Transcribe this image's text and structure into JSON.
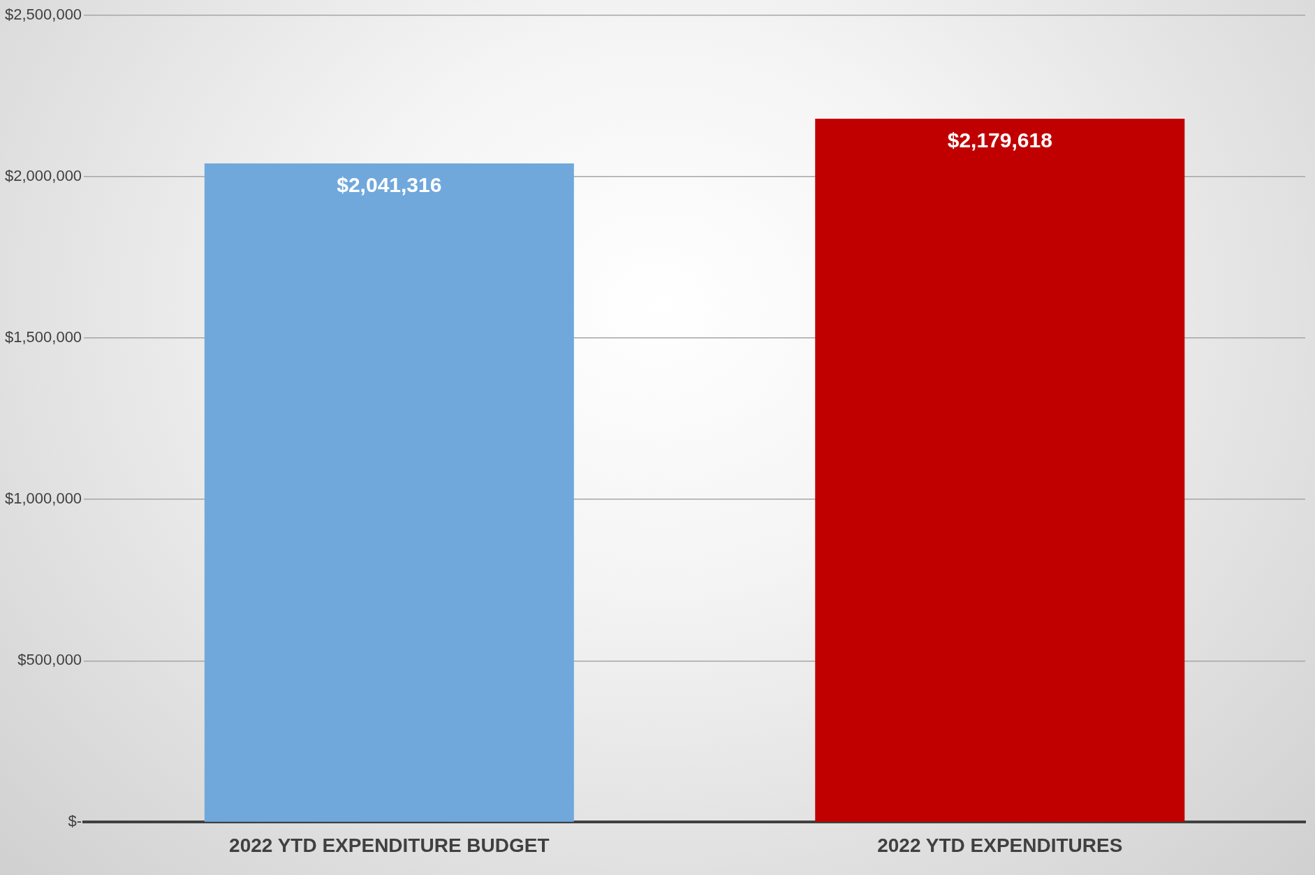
{
  "chart_data": {
    "type": "bar",
    "categories": [
      "2022 YTD EXPENDITURE BUDGET",
      "2022 YTD EXPENDITURES"
    ],
    "values": [
      2041316,
      2179618
    ],
    "colors": [
      "#70a8dc",
      "#c00000"
    ],
    "value_labels": [
      "$2,041,316",
      "$2,179,618"
    ],
    "ylim": [
      0,
      2500000
    ],
    "yticks": [
      {
        "value": 0,
        "label": "$-"
      },
      {
        "value": 500000,
        "label": "$500,000"
      },
      {
        "value": 1000000,
        "label": "$1,000,000"
      },
      {
        "value": 1500000,
        "label": "$1,500,000"
      },
      {
        "value": 2000000,
        "label": "$2,000,000"
      },
      {
        "value": 2500000,
        "label": "$2,500,000"
      }
    ],
    "grid": "y",
    "legend": false
  }
}
